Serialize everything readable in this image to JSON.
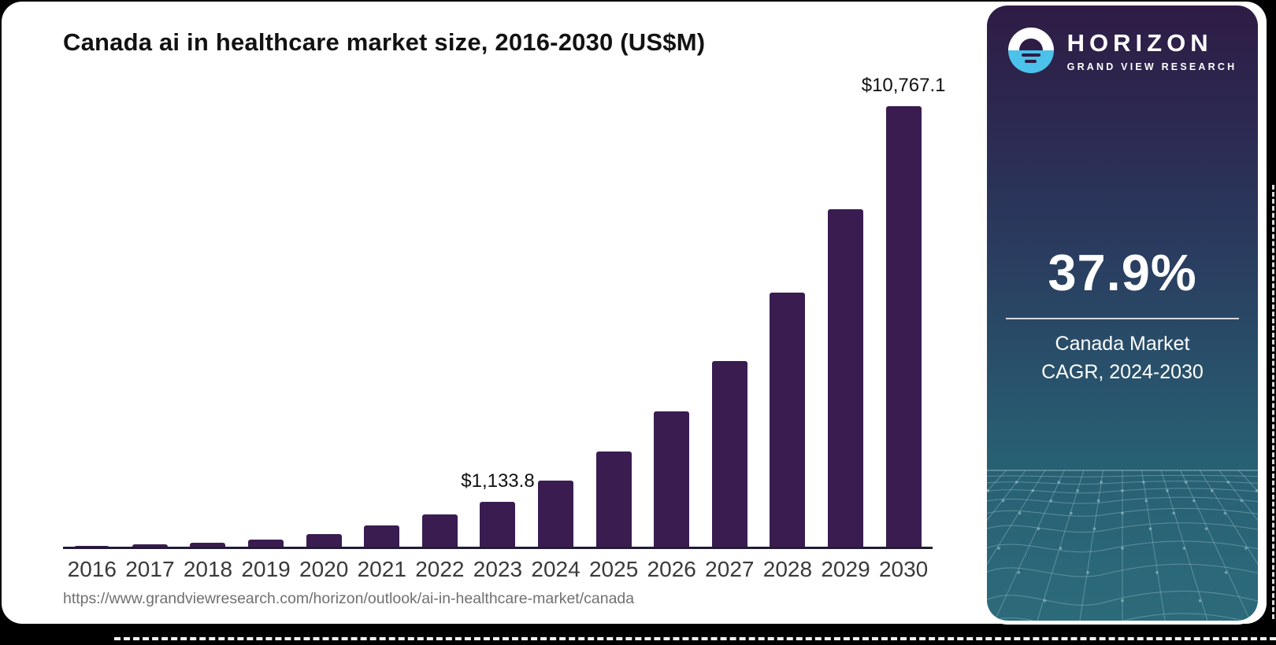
{
  "page": {
    "title": "Canada ai in healthcare market size, 2016-2030 (US$M)",
    "source_url": "https://www.grandviewresearch.com/horizon/outlook/ai-in-healthcare-market/canada"
  },
  "chart_data": {
    "type": "bar",
    "title": "Canada ai in healthcare market size, 2016-2030 (US$M)",
    "unit": "US$M",
    "categories": [
      "2016",
      "2017",
      "2018",
      "2019",
      "2020",
      "2021",
      "2022",
      "2023",
      "2024",
      "2025",
      "2026",
      "2027",
      "2028",
      "2029",
      "2030"
    ],
    "values": [
      67,
      96,
      130,
      210,
      350,
      560,
      820,
      1133.8,
      1650,
      2350,
      3330,
      4560,
      6230,
      8260,
      10767.1
    ],
    "data_labels": [
      "",
      "",
      "",
      "",
      "",
      "",
      "",
      "$1,133.8",
      "",
      "",
      "",
      "",
      "",
      "",
      "$10,767.1"
    ],
    "ylim": [
      0,
      11000
    ],
    "xlabel": "",
    "ylabel": "",
    "grid": "off",
    "legend": "none",
    "bar_color": "#3a1c51",
    "axis_color": "#231b35"
  },
  "sidebar": {
    "logo": {
      "brand": "HORIZON",
      "subbrand": "GRAND VIEW RESEARCH",
      "icon": "sun-horizon-icon",
      "icon_blue": "#4cc1ea"
    },
    "stat": {
      "value": "37.9%",
      "caption_line1": "Canada Market",
      "caption_line2": "CAGR, 2024-2030"
    },
    "colors": {
      "gradient_top": "#2e1c45",
      "gradient_mid": "#2a3a5e",
      "gradient_bottom": "#2c6b7b",
      "mesh_line": "#9cc2cc"
    }
  }
}
